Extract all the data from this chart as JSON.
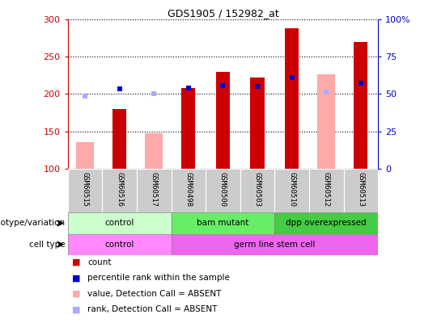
{
  "title": "GDS1905 / 152982_at",
  "samples": [
    "GSM60515",
    "GSM60516",
    "GSM60517",
    "GSM60498",
    "GSM60500",
    "GSM60503",
    "GSM60510",
    "GSM60512",
    "GSM60513"
  ],
  "count_values": [
    null,
    180,
    null,
    208,
    230,
    222,
    288,
    null,
    270
  ],
  "count_base": 100,
  "percentile_values": [
    null,
    207,
    null,
    208,
    211,
    210,
    222,
    null,
    215
  ],
  "absent_value": [
    135,
    null,
    147,
    null,
    null,
    null,
    null,
    227,
    null
  ],
  "absent_rank": [
    197,
    null,
    200,
    null,
    null,
    null,
    null,
    203,
    null
  ],
  "ylim": [
    100,
    300
  ],
  "yticks": [
    100,
    150,
    200,
    250,
    300
  ],
  "right_yticks": [
    0,
    25,
    50,
    75,
    100
  ],
  "right_ylim": [
    0,
    100
  ],
  "bar_width": 0.4,
  "count_color": "#cc0000",
  "percentile_color": "#0000cc",
  "absent_value_color": "#ffaaaa",
  "absent_rank_color": "#aaaaff",
  "genotype_groups": [
    {
      "label": "control",
      "start": 0,
      "end": 3,
      "color": "#ccffcc"
    },
    {
      "label": "bam mutant",
      "start": 3,
      "end": 6,
      "color": "#66ee66"
    },
    {
      "label": "dpp overexpressed",
      "start": 6,
      "end": 9,
      "color": "#44cc44"
    }
  ],
  "celltype_groups": [
    {
      "label": "control",
      "start": 0,
      "end": 3,
      "color": "#ff88ff"
    },
    {
      "label": "germ line stem cell",
      "start": 3,
      "end": 9,
      "color": "#ee66ee"
    }
  ],
  "left_ylabel_color": "#cc0000",
  "right_ylabel_color": "#0000cc",
  "legend_items": [
    {
      "label": "count",
      "color": "#cc0000"
    },
    {
      "label": "percentile rank within the sample",
      "color": "#0000cc"
    },
    {
      "label": "value, Detection Call = ABSENT",
      "color": "#ffaaaa"
    },
    {
      "label": "rank, Detection Call = ABSENT",
      "color": "#aaaaff"
    }
  ],
  "sample_row_bg": "#cccccc",
  "chart_bg": "#ffffff"
}
